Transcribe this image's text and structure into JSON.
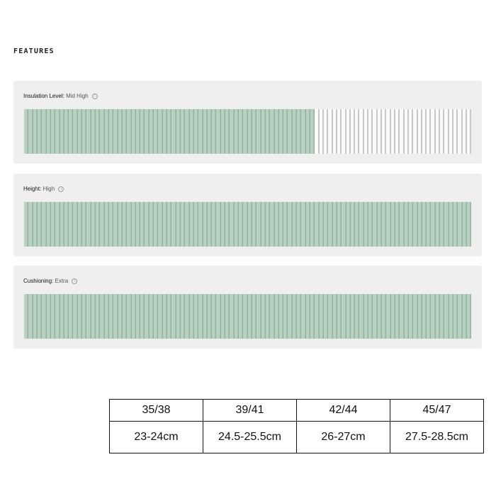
{
  "page": {
    "section_title": "FEATURES"
  },
  "features": [
    {
      "label": "Insulation Level:",
      "value": "Mid High",
      "icon": "info-icon",
      "fill_fraction": 0.65,
      "accent": "#b9d1c1"
    },
    {
      "label": "Height:",
      "value": "High",
      "icon": "info-icon",
      "fill_fraction": 1.0,
      "accent": "#b9d1c1"
    },
    {
      "label": "Cushioning:",
      "value": "Extra",
      "icon": "info-icon",
      "fill_fraction": 1.0,
      "accent": "#b9d1c1"
    }
  ],
  "size_table": {
    "sizes": [
      "35/38",
      "39/41",
      "42/44",
      "45/47"
    ],
    "lengths": [
      "23-24cm",
      "24.5-25.5cm",
      "26-27cm",
      "27.5-28.5cm"
    ]
  }
}
